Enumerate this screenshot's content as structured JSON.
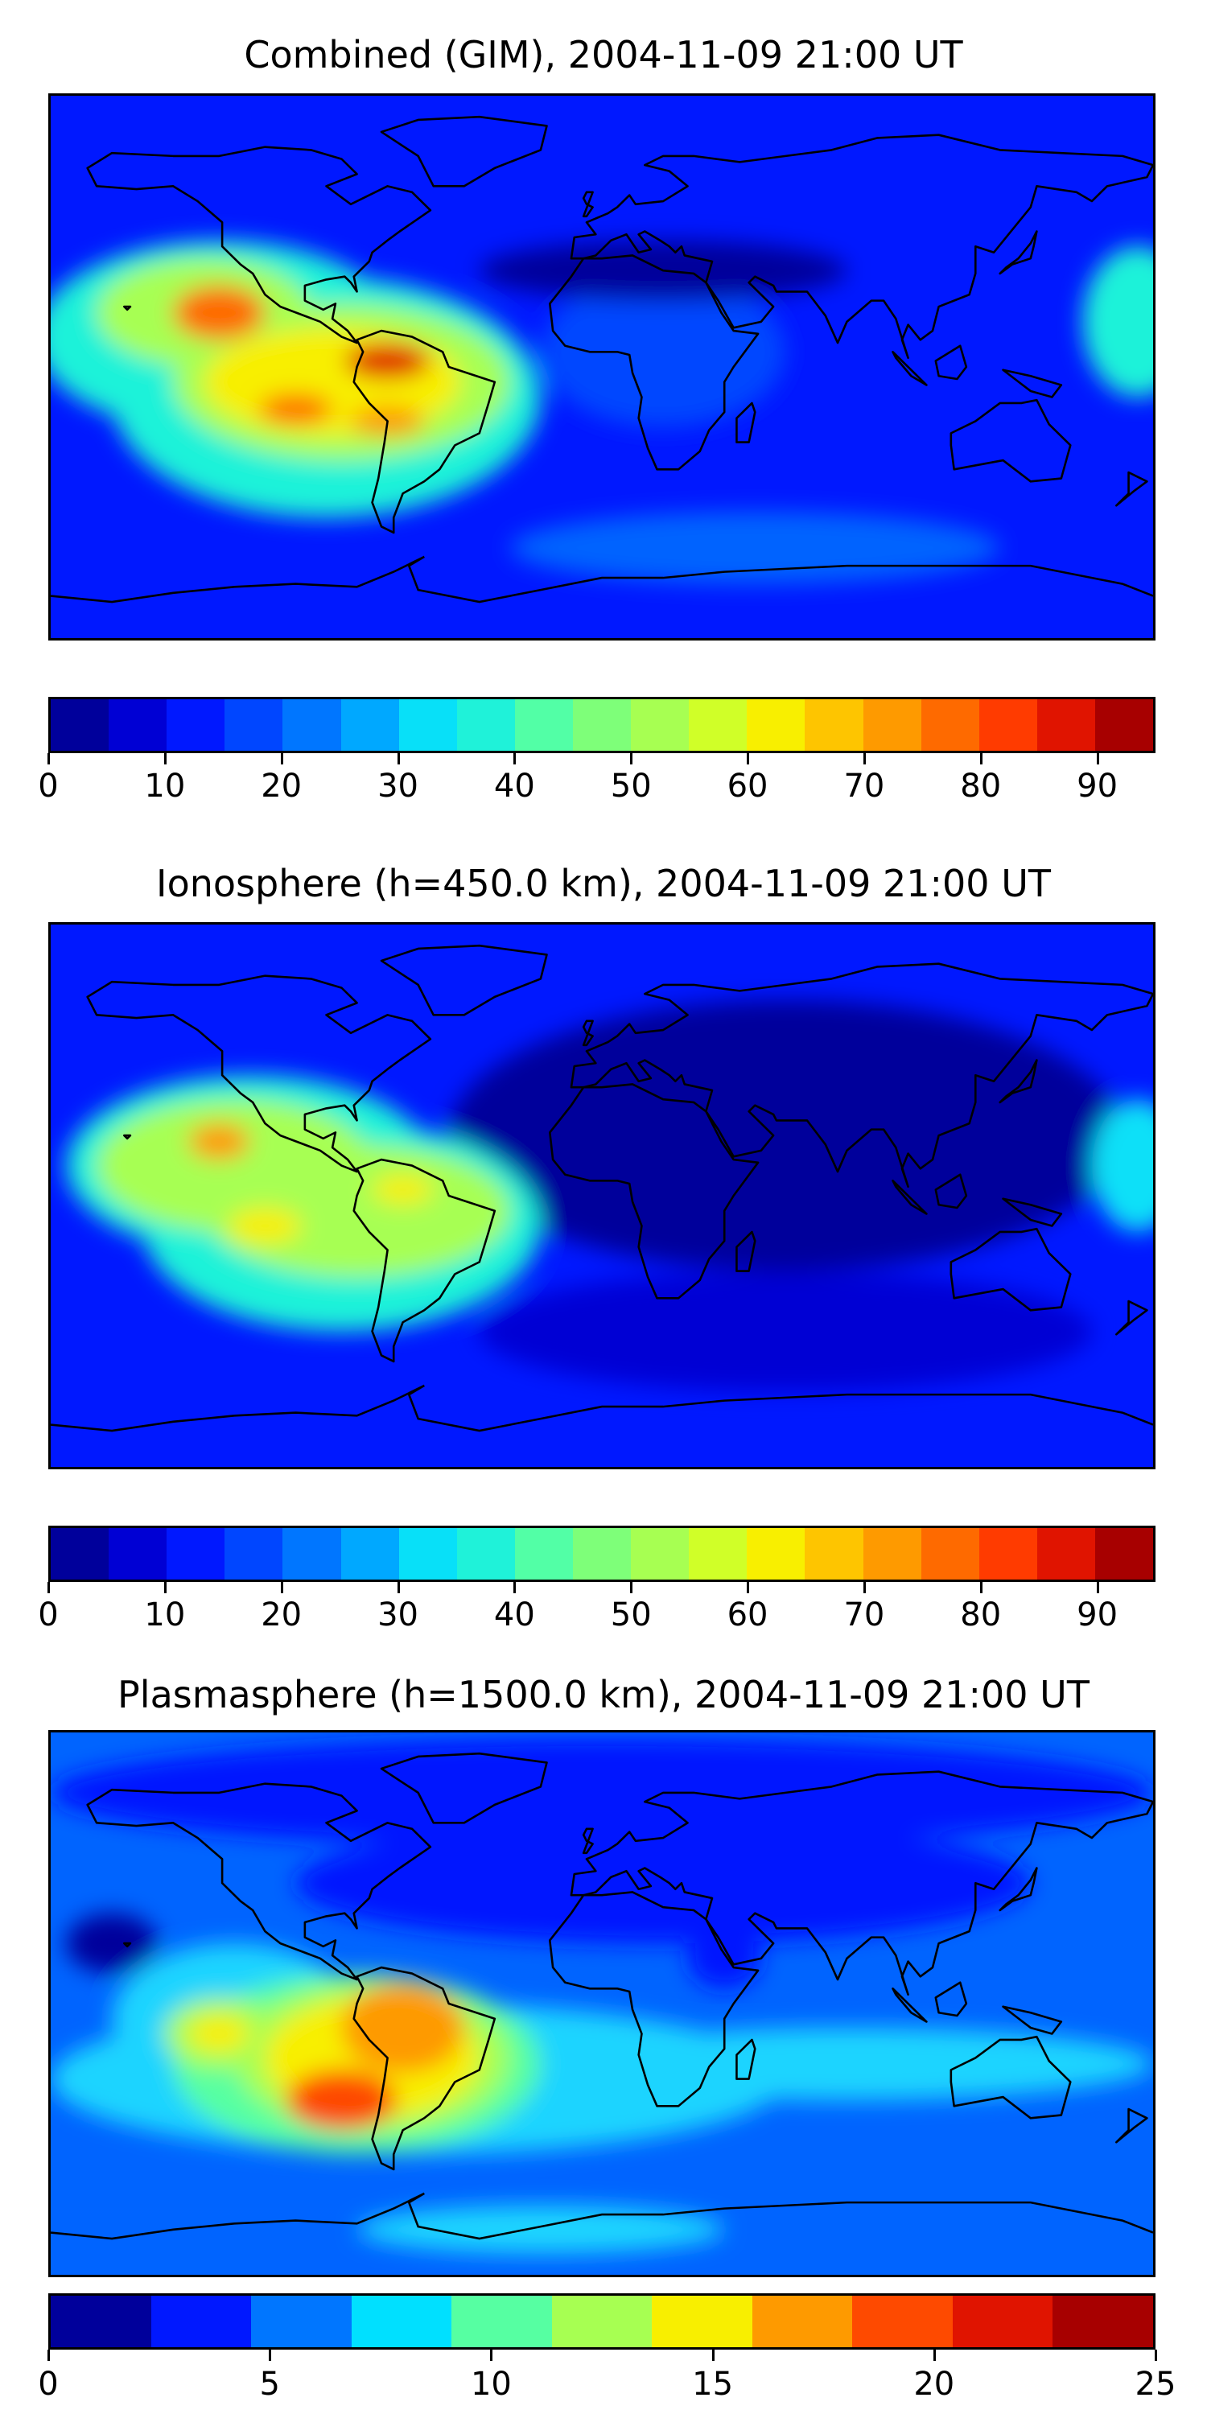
{
  "panels": [
    {
      "title": "Combined (GIM), 2004-11-09 21:00 UT",
      "background": "#0018ff",
      "blobs": [
        {
          "lon": -125,
          "lat": 10,
          "rx": 60,
          "ry": 32,
          "color": "#1ff2d9"
        },
        {
          "lon": -90,
          "lat": -10,
          "rx": 70,
          "ry": 40,
          "color": "#1ff2d9"
        },
        {
          "lon": -130,
          "lat": 18,
          "rx": 35,
          "ry": 18,
          "color": "#a7ff52"
        },
        {
          "lon": -85,
          "lat": -5,
          "rx": 55,
          "ry": 26,
          "color": "#a7ff52"
        },
        {
          "lon": -88,
          "lat": -5,
          "rx": 42,
          "ry": 18,
          "color": "#f8ef00"
        },
        {
          "lon": -125,
          "lat": 18,
          "rx": 15,
          "ry": 9,
          "color": "#fe6a00"
        },
        {
          "lon": -70,
          "lat": 2,
          "rx": 14,
          "ry": 6,
          "color": "#e01400"
        },
        {
          "lon": -100,
          "lat": -14,
          "rx": 12,
          "ry": 5,
          "color": "#fe6a00"
        },
        {
          "lon": -70,
          "lat": -18,
          "rx": 12,
          "ry": 5,
          "color": "#fe9a00"
        },
        {
          "lon": 20,
          "lat": 5,
          "rx": 40,
          "ry": 25,
          "color": "#0046ff"
        },
        {
          "lon": 175,
          "lat": 15,
          "rx": 18,
          "ry": 25,
          "color": "#1ff2d9"
        },
        {
          "lon": 20,
          "lat": 32,
          "rx": 60,
          "ry": 10,
          "color": "#00009b"
        },
        {
          "lon": 50,
          "lat": -60,
          "rx": 80,
          "ry": 12,
          "color": "#0064ff"
        }
      ],
      "colorbar": {
        "colors": [
          "#00009b",
          "#0000d4",
          "#0018ff",
          "#0046ff",
          "#0076ff",
          "#00a8ff",
          "#08e0f8",
          "#1ff2d9",
          "#52ffa6",
          "#7eff79",
          "#a7ff52",
          "#d0ff28",
          "#f8ef00",
          "#fec500",
          "#fe9a00",
          "#fe6a00",
          "#ff3b00",
          "#e01400",
          "#a70000"
        ],
        "vmin": 0,
        "vmax": 95,
        "ticks": [
          "0",
          "10",
          "20",
          "30",
          "40",
          "50",
          "60",
          "70",
          "80",
          "90"
        ],
        "tick_values": [
          0,
          10,
          20,
          30,
          40,
          50,
          60,
          70,
          80,
          90
        ]
      }
    },
    {
      "title": "Ionosphere  (h=450.0 km), 2004-11-09 21:00 UT",
      "background": "#0018ff",
      "blobs": [
        {
          "lon": 60,
          "lat": 20,
          "rx": 110,
          "ry": 45,
          "color": "#00009b"
        },
        {
          "lon": 60,
          "lat": -45,
          "rx": 100,
          "ry": 20,
          "color": "#0000d4"
        },
        {
          "lon": -115,
          "lat": 10,
          "rx": 60,
          "ry": 30,
          "color": "#1ff2d9"
        },
        {
          "lon": -85,
          "lat": -10,
          "rx": 65,
          "ry": 35,
          "color": "#1ff2d9"
        },
        {
          "lon": -120,
          "lat": 10,
          "rx": 45,
          "ry": 22,
          "color": "#a7ff52"
        },
        {
          "lon": -80,
          "lat": -5,
          "rx": 50,
          "ry": 22,
          "color": "#a7ff52"
        },
        {
          "lon": -125,
          "lat": 18,
          "rx": 10,
          "ry": 6,
          "color": "#fe9a00"
        },
        {
          "lon": -110,
          "lat": -10,
          "rx": 12,
          "ry": 6,
          "color": "#f8ef00"
        },
        {
          "lon": -65,
          "lat": 2,
          "rx": 10,
          "ry": 5,
          "color": "#f8ef00"
        },
        {
          "lon": 175,
          "lat": 10,
          "rx": 15,
          "ry": 22,
          "color": "#08e0f8"
        }
      ],
      "colorbar": {
        "colors": [
          "#00009b",
          "#0000d4",
          "#0018ff",
          "#0046ff",
          "#0076ff",
          "#00a8ff",
          "#08e0f8",
          "#1ff2d9",
          "#52ffa6",
          "#7eff79",
          "#a7ff52",
          "#d0ff28",
          "#f8ef00",
          "#fec500",
          "#fe9a00",
          "#fe6a00",
          "#ff3b00",
          "#e01400",
          "#a70000"
        ],
        "vmin": 0,
        "vmax": 95,
        "ticks": [
          "0",
          "10",
          "20",
          "30",
          "40",
          "50",
          "60",
          "70",
          "80",
          "90"
        ],
        "tick_values": [
          0,
          10,
          20,
          30,
          40,
          50,
          60,
          70,
          80,
          90
        ]
      }
    },
    {
      "title": "Plasmasphere (h=1500.0 km), 2004-11-09 21:00 UT",
      "background": "#0064ff",
      "blobs": [
        {
          "lon": 0,
          "lat": 70,
          "rx": 180,
          "ry": 18,
          "color": "#0018ff"
        },
        {
          "lon": 20,
          "lat": 40,
          "rx": 120,
          "ry": 20,
          "color": "#0018ff"
        },
        {
          "lon": -60,
          "lat": -25,
          "rx": 120,
          "ry": 25,
          "color": "#1ed4ff"
        },
        {
          "lon": -120,
          "lat": -5,
          "rx": 40,
          "ry": 25,
          "color": "#1ed4ff"
        },
        {
          "lon": 80,
          "lat": -20,
          "rx": 100,
          "ry": 12,
          "color": "#1ed4ff"
        },
        {
          "lon": -80,
          "lat": -20,
          "rx": 60,
          "ry": 30,
          "color": "#56ffa2"
        },
        {
          "lon": -75,
          "lat": -18,
          "rx": 45,
          "ry": 25,
          "color": "#a7ff52"
        },
        {
          "lon": -125,
          "lat": -10,
          "rx": 18,
          "ry": 12,
          "color": "#a7ff52"
        },
        {
          "lon": -75,
          "lat": -18,
          "rx": 35,
          "ry": 20,
          "color": "#f8ef00"
        },
        {
          "lon": -125,
          "lat": -10,
          "rx": 10,
          "ry": 6,
          "color": "#f8ef00"
        },
        {
          "lon": -65,
          "lat": -8,
          "rx": 20,
          "ry": 15,
          "color": "#fe9a00"
        },
        {
          "lon": -85,
          "lat": -32,
          "rx": 18,
          "ry": 10,
          "color": "#fe4a00"
        },
        {
          "lon": -160,
          "lat": 20,
          "rx": 15,
          "ry": 10,
          "color": "#00009b"
        },
        {
          "lon": 40,
          "lat": 15,
          "rx": 12,
          "ry": 10,
          "color": "#0018ff"
        },
        {
          "lon": -20,
          "lat": -75,
          "rx": 60,
          "ry": 8,
          "color": "#1ed4ff"
        }
      ],
      "colorbar": {
        "colors": [
          "#00009b",
          "#0018ff",
          "#0076ff",
          "#00e0ff",
          "#56ffa2",
          "#a7ff52",
          "#f8ef00",
          "#fe9a00",
          "#fe4a00",
          "#e01400",
          "#a70000"
        ],
        "vmin": 0,
        "vmax": 25,
        "ticks": [
          "0",
          "5",
          "10",
          "15",
          "20",
          "25"
        ],
        "tick_values": [
          0,
          5,
          10,
          15,
          20,
          25
        ]
      }
    }
  ]
}
